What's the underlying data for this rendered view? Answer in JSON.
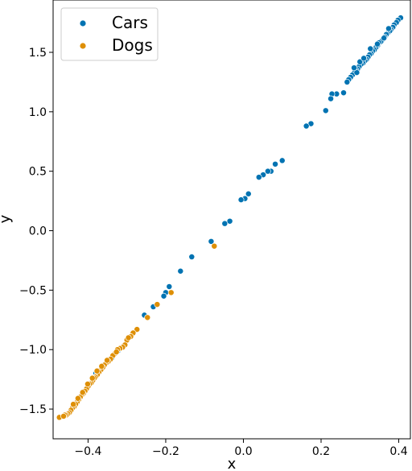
{
  "chart_data": {
    "type": "scatter",
    "xlabel": "x",
    "ylabel": "y",
    "xlim": [
      -0.49,
      0.43
    ],
    "ylim": [
      -1.75,
      1.94
    ],
    "xticks": [
      -0.4,
      -0.2,
      0.0,
      0.2,
      0.4
    ],
    "xtick_labels": [
      "−0.4",
      "−0.2",
      "0.0",
      "0.2",
      "0.4"
    ],
    "yticks": [
      -1.5,
      -1.0,
      -0.5,
      0.0,
      0.5,
      1.0,
      1.5
    ],
    "ytick_labels": [
      "−1.5",
      "−1.0",
      "−0.5",
      "0.0",
      "0.5",
      "1.0",
      "1.5"
    ],
    "grid": false,
    "legend_position": "top-left",
    "series": [
      {
        "name": "Cars",
        "color": "#0173b2",
        "points": [
          [
            0.405,
            1.79
          ],
          [
            0.398,
            1.77
          ],
          [
            0.394,
            1.75
          ],
          [
            0.388,
            1.73
          ],
          [
            0.385,
            1.71
          ],
          [
            0.38,
            1.69
          ],
          [
            0.377,
            1.68
          ],
          [
            0.371,
            1.66
          ],
          [
            0.368,
            1.65
          ],
          [
            0.364,
            1.63
          ],
          [
            0.359,
            1.61
          ],
          [
            0.354,
            1.59
          ],
          [
            0.349,
            1.58
          ],
          [
            0.346,
            1.56
          ],
          [
            0.341,
            1.54
          ],
          [
            0.337,
            1.52
          ],
          [
            0.333,
            1.51
          ],
          [
            0.329,
            1.49
          ],
          [
            0.325,
            1.48
          ],
          [
            0.321,
            1.46
          ],
          [
            0.317,
            1.44
          ],
          [
            0.313,
            1.43
          ],
          [
            0.308,
            1.41
          ],
          [
            0.303,
            1.4
          ],
          [
            0.298,
            1.38
          ],
          [
            0.294,
            1.36
          ],
          [
            0.29,
            1.35
          ],
          [
            0.286,
            1.33
          ],
          [
            0.281,
            1.31
          ],
          [
            0.276,
            1.29
          ],
          [
            0.271,
            1.27
          ],
          [
            0.267,
            1.25
          ],
          [
            0.3,
            1.42
          ],
          [
            0.292,
            1.33
          ],
          [
            0.285,
            1.37
          ],
          [
            0.31,
            1.45
          ],
          [
            0.327,
            1.53
          ],
          [
            0.345,
            1.57
          ],
          [
            0.362,
            1.62
          ],
          [
            0.374,
            1.7
          ],
          [
            0.258,
            1.16
          ],
          [
            0.24,
            1.15
          ],
          [
            0.228,
            1.15
          ],
          [
            0.225,
            1.11
          ],
          [
            0.212,
            1.01
          ],
          [
            0.174,
            0.9
          ],
          [
            0.162,
            0.88
          ],
          [
            0.1,
            0.59
          ],
          [
            0.082,
            0.56
          ],
          [
            0.071,
            0.5
          ],
          [
            0.063,
            0.5
          ],
          [
            0.051,
            0.47
          ],
          [
            0.04,
            0.45
          ],
          [
            0.013,
            0.31
          ],
          [
            0.004,
            0.27
          ],
          [
            -0.006,
            0.26
          ],
          [
            -0.035,
            0.08
          ],
          [
            -0.048,
            0.06
          ],
          [
            -0.083,
            -0.09
          ],
          [
            -0.133,
            -0.22
          ],
          [
            -0.162,
            -0.34
          ],
          [
            -0.191,
            -0.47
          ],
          [
            -0.2,
            -0.52
          ],
          [
            -0.205,
            -0.55
          ],
          [
            -0.232,
            -0.64
          ],
          [
            -0.255,
            -0.71
          ],
          [
            -0.323,
            -1.01
          ],
          [
            -0.339,
            -1.07
          ],
          [
            -0.355,
            -1.12
          ],
          [
            -0.38,
            -1.2
          ]
        ]
      },
      {
        "name": "Dogs",
        "color": "#de8f05",
        "points": [
          [
            -0.075,
            -0.13
          ],
          [
            -0.186,
            -0.52
          ],
          [
            -0.222,
            -0.62
          ],
          [
            -0.247,
            -0.73
          ],
          [
            -0.274,
            -0.83
          ],
          [
            -0.284,
            -0.86
          ],
          [
            -0.29,
            -0.89
          ],
          [
            -0.3,
            -0.92
          ],
          [
            -0.305,
            -0.96
          ],
          [
            -0.311,
            -0.98
          ],
          [
            -0.318,
            -0.99
          ],
          [
            -0.324,
            -1.0
          ],
          [
            -0.33,
            -1.03
          ],
          [
            -0.336,
            -1.05
          ],
          [
            -0.342,
            -1.08
          ],
          [
            -0.348,
            -1.1
          ],
          [
            -0.353,
            -1.11
          ],
          [
            -0.358,
            -1.13
          ],
          [
            -0.362,
            -1.15
          ],
          [
            -0.367,
            -1.17
          ],
          [
            -0.372,
            -1.19
          ],
          [
            -0.376,
            -1.21
          ],
          [
            -0.381,
            -1.23
          ],
          [
            -0.384,
            -1.24
          ],
          [
            -0.388,
            -1.26
          ],
          [
            -0.392,
            -1.28
          ],
          [
            -0.396,
            -1.29
          ],
          [
            -0.4,
            -1.31
          ],
          [
            -0.404,
            -1.33
          ],
          [
            -0.408,
            -1.35
          ],
          [
            -0.412,
            -1.37
          ],
          [
            -0.416,
            -1.38
          ],
          [
            -0.42,
            -1.4
          ],
          [
            -0.424,
            -1.42
          ],
          [
            -0.428,
            -1.44
          ],
          [
            -0.432,
            -1.46
          ],
          [
            -0.436,
            -1.48
          ],
          [
            -0.44,
            -1.49
          ],
          [
            -0.444,
            -1.51
          ],
          [
            -0.448,
            -1.53
          ],
          [
            -0.452,
            -1.54
          ],
          [
            -0.456,
            -1.55
          ],
          [
            -0.46,
            -1.55
          ],
          [
            -0.474,
            -1.57
          ],
          [
            -0.463,
            -1.56
          ],
          [
            -0.401,
            -1.29
          ],
          [
            -0.389,
            -1.24
          ],
          [
            -0.377,
            -1.18
          ],
          [
            -0.365,
            -1.14
          ],
          [
            -0.351,
            -1.09
          ],
          [
            -0.327,
            -1.02
          ],
          [
            -0.296,
            -0.9
          ],
          [
            -0.414,
            -1.36
          ],
          [
            -0.426,
            -1.41
          ],
          [
            -0.438,
            -1.46
          ]
        ]
      }
    ]
  }
}
